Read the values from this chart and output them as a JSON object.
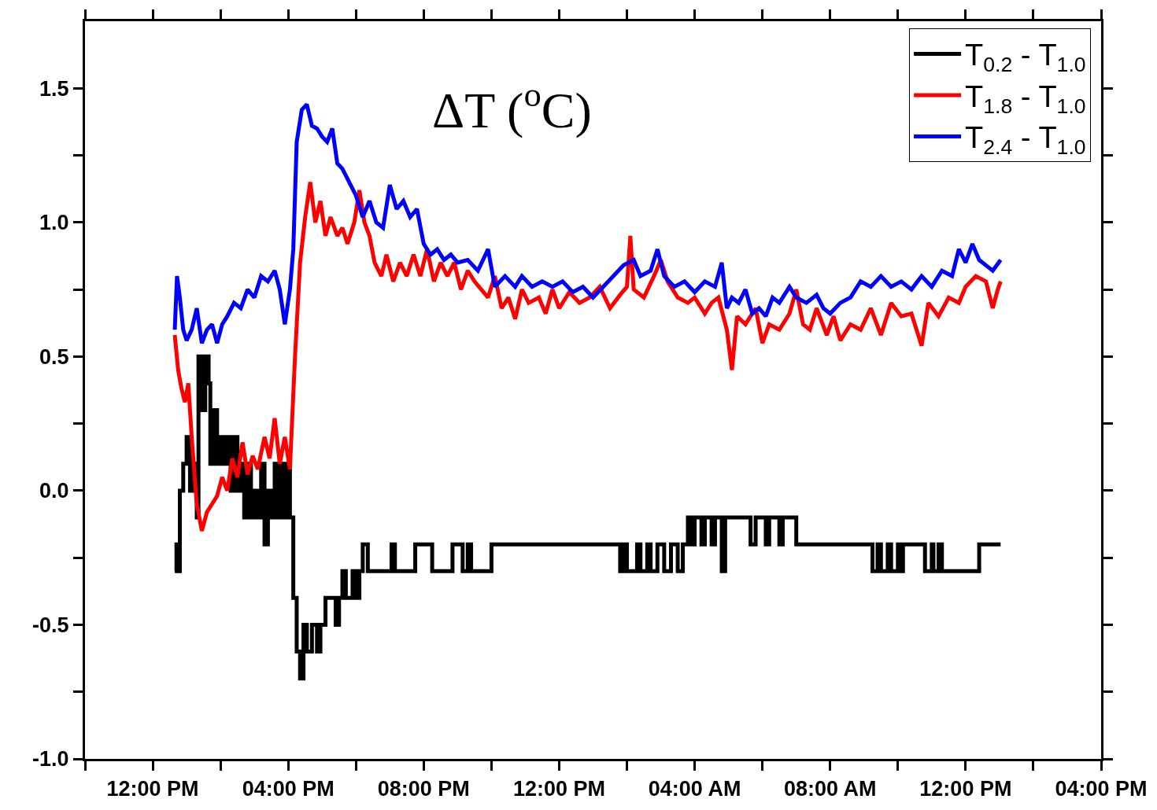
{
  "chart_data": {
    "type": "line",
    "annotations": [
      "ΔT ($^{o}$C)"
    ],
    "legend": "top right",
    "line_style": "solid",
    "xlim": [
      "2000-01-01T10:00",
      "2000-01-02T16:00"
    ],
    "xticks": [
      {
        "value": "2000-01-01T10:00",
        "label": null
      },
      {
        "value": "2000-01-01T12:00",
        "label": "12:00 PM"
      },
      {
        "value": "2000-01-01T14:00",
        "label": null
      },
      {
        "value": "2000-01-01T16:00",
        "label": "04:00 PM"
      },
      {
        "value": "2000-01-01T18:00",
        "label": null
      },
      {
        "value": "2000-01-01T20:00",
        "label": "08:00 PM"
      },
      {
        "value": "2000-01-01T22:00",
        "label": null
      },
      {
        "value": "2000-01-02T00:00",
        "label": "12:00 PM"
      },
      {
        "value": "2000-01-02T02:00",
        "label": null
      },
      {
        "value": "2000-01-02T04:00",
        "label": "04:00 AM"
      },
      {
        "value": "2000-01-02T06:00",
        "label": null
      },
      {
        "value": "2000-01-02T08:00",
        "label": "08:00 AM"
      },
      {
        "value": "2000-01-02T10:00",
        "label": null
      },
      {
        "value": "2000-01-02T12:00",
        "label": "12:00 PM"
      },
      {
        "value": "2000-01-02T14:00",
        "label": null
      },
      {
        "value": "2000-01-02T16:00",
        "label": "04:00 PM"
      }
    ],
    "ylim": [
      -1.0,
      1.75
    ],
    "yticks": [
      {
        "value": -1.0,
        "label": "-1.0"
      },
      {
        "value": -0.75,
        "label": null
      },
      {
        "value": -0.5,
        "label": "-0.5"
      },
      {
        "value": -0.25,
        "label": null
      },
      {
        "value": 0,
        "label": "0.0"
      },
      {
        "value": 0.25,
        "label": null
      },
      {
        "value": 0.5,
        "label": "0.5"
      },
      {
        "value": 0.75,
        "label": null
      },
      {
        "value": 1.0,
        "label": "1.0"
      },
      {
        "value": 1.25,
        "label": null
      },
      {
        "value": 1.5,
        "label": "1.5"
      }
    ],
    "series": [
      {
        "name": "T$_{0.2}$ - T$_{1.0}$",
        "color": "#000000",
        "type": "step",
        "x": [
          "2000-01-01T12:39",
          "2000-01-01T12:42",
          "2000-01-01T12:45",
          "2000-01-01T12:48",
          "2000-01-01T12:54",
          "2000-01-01T13:00",
          "2000-01-01T13:06",
          "2000-01-01T13:12",
          "2000-01-01T13:18",
          "2000-01-01T13:21",
          "2000-01-01T13:27",
          "2000-01-01T13:33",
          "2000-01-01T13:39",
          "2000-01-01T13:42",
          "2000-01-01T13:48",
          "2000-01-01T13:54",
          "2000-01-01T14:00",
          "2000-01-01T14:06",
          "2000-01-01T14:12",
          "2000-01-01T14:18",
          "2000-01-01T14:24",
          "2000-01-01T14:30",
          "2000-01-01T14:36",
          "2000-01-01T14:42",
          "2000-01-01T14:48",
          "2000-01-01T14:54",
          "2000-01-01T15:00",
          "2000-01-01T15:06",
          "2000-01-01T15:12",
          "2000-01-01T15:18",
          "2000-01-01T15:24",
          "2000-01-01T15:30",
          "2000-01-01T15:36",
          "2000-01-01T15:42",
          "2000-01-01T15:48",
          "2000-01-01T15:54",
          "2000-01-01T16:00",
          "2000-01-01T16:03",
          "2000-01-01T16:09",
          "2000-01-01T16:15",
          "2000-01-01T16:21",
          "2000-01-01T16:27",
          "2000-01-01T16:33",
          "2000-01-01T16:42",
          "2000-01-01T16:51",
          "2000-01-01T16:57",
          "2000-01-01T17:06",
          "2000-01-01T17:18",
          "2000-01-01T17:24",
          "2000-01-01T17:30",
          "2000-01-01T17:36",
          "2000-01-01T17:42",
          "2000-01-01T17:54",
          "2000-01-01T18:00",
          "2000-01-01T18:06",
          "2000-01-01T18:12",
          "2000-01-01T18:21",
          "2000-01-01T19:00",
          "2000-01-01T19:03",
          "2000-01-01T19:09",
          "2000-01-01T19:42",
          "2000-01-01T19:45",
          "2000-01-01T20:12",
          "2000-01-01T20:15",
          "2000-01-01T20:48",
          "2000-01-01T20:51",
          "2000-01-01T21:06",
          "2000-01-01T21:09",
          "2000-01-01T21:18",
          "2000-01-01T21:24",
          "2000-01-01T21:57",
          "2000-01-01T22:00",
          "2000-01-02T01:45",
          "2000-01-02T01:48",
          "2000-01-02T01:54",
          "2000-01-02T02:00",
          "2000-01-02T02:18",
          "2000-01-02T02:24",
          "2000-01-02T02:36",
          "2000-01-02T02:42",
          "2000-01-02T02:54",
          "2000-01-02T03:06",
          "2000-01-02T03:18",
          "2000-01-02T03:30",
          "2000-01-02T03:39",
          "2000-01-02T03:48",
          "2000-01-02T03:54",
          "2000-01-02T04:00",
          "2000-01-02T04:12",
          "2000-01-02T04:18",
          "2000-01-02T04:30",
          "2000-01-02T04:36",
          "2000-01-02T04:48",
          "2000-01-02T04:54",
          "2000-01-02T05:36",
          "2000-01-02T05:39",
          "2000-01-02T05:48",
          "2000-01-02T06:06",
          "2000-01-02T06:12",
          "2000-01-02T06:30",
          "2000-01-02T06:36",
          "2000-01-02T06:57",
          "2000-01-02T07:00",
          "2000-01-02T09:12",
          "2000-01-02T09:15",
          "2000-01-02T09:24",
          "2000-01-02T09:30",
          "2000-01-02T09:42",
          "2000-01-02T09:48",
          "2000-01-02T10:00",
          "2000-01-02T10:03",
          "2000-01-02T10:09",
          "2000-01-02T10:45",
          "2000-01-02T10:48",
          "2000-01-02T11:00",
          "2000-01-02T11:03",
          "2000-01-02T11:12",
          "2000-01-02T11:18",
          "2000-01-02T12:18",
          "2000-01-02T12:24",
          "2000-01-02T13:02"
        ],
        "values": [
          -0.3,
          -0.2,
          -0.3,
          0.0,
          0.1,
          0.2,
          0.0,
          0.1,
          -0.1,
          0.5,
          0.3,
          0.5,
          0.4,
          0.1,
          0.3,
          0.1,
          0.2,
          0.1,
          0.2,
          0.0,
          0.2,
          0.0,
          0.1,
          -0.1,
          0.1,
          -0.1,
          0.0,
          -0.1,
          0.1,
          -0.2,
          0.0,
          -0.1,
          0.1,
          -0.1,
          0.1,
          -0.1,
          0.1,
          -0.1,
          -0.4,
          -0.6,
          -0.7,
          -0.5,
          -0.6,
          -0.5,
          -0.6,
          -0.5,
          -0.4,
          -0.4,
          -0.5,
          -0.4,
          -0.3,
          -0.4,
          -0.3,
          -0.4,
          -0.3,
          -0.2,
          -0.3,
          -0.3,
          -0.2,
          -0.3,
          -0.3,
          -0.2,
          -0.2,
          -0.3,
          -0.3,
          -0.2,
          -0.2,
          -0.3,
          -0.2,
          -0.3,
          -0.3,
          -0.2,
          -0.2,
          -0.3,
          -0.2,
          -0.3,
          -0.2,
          -0.3,
          -0.2,
          -0.3,
          -0.2,
          -0.3,
          -0.2,
          -0.3,
          -0.2,
          -0.1,
          -0.2,
          -0.1,
          -0.2,
          -0.1,
          -0.2,
          -0.1,
          -0.3,
          -0.1,
          -0.1,
          -0.2,
          -0.1,
          -0.2,
          -0.1,
          -0.2,
          -0.1,
          -0.1,
          -0.2,
          -0.2,
          -0.3,
          -0.2,
          -0.3,
          -0.2,
          -0.3,
          -0.2,
          -0.3,
          -0.2,
          -0.2,
          -0.3,
          -0.2,
          -0.3,
          -0.2,
          -0.3,
          -0.3,
          -0.2,
          -0.2
        ]
      },
      {
        "name": "T$_{1.8}$ - T$_{1.0}$",
        "color": "#ff0000",
        "x": [
          "2000-01-01T12:39",
          "2000-01-01T12:45",
          "2000-01-01T12:51",
          "2000-01-01T12:57",
          "2000-01-01T13:03",
          "2000-01-01T13:09",
          "2000-01-01T13:18",
          "2000-01-01T13:27",
          "2000-01-01T13:36",
          "2000-01-01T13:45",
          "2000-01-01T13:54",
          "2000-01-01T14:03",
          "2000-01-01T14:12",
          "2000-01-01T14:21",
          "2000-01-01T14:30",
          "2000-01-01T14:39",
          "2000-01-01T14:48",
          "2000-01-01T14:57",
          "2000-01-01T15:06",
          "2000-01-01T15:18",
          "2000-01-01T15:27",
          "2000-01-01T15:36",
          "2000-01-01T15:45",
          "2000-01-01T15:54",
          "2000-01-01T16:03",
          "2000-01-01T16:12",
          "2000-01-01T16:21",
          "2000-01-01T16:30",
          "2000-01-01T16:39",
          "2000-01-01T16:48",
          "2000-01-01T16:57",
          "2000-01-01T17:06",
          "2000-01-01T17:15",
          "2000-01-01T17:27",
          "2000-01-01T17:36",
          "2000-01-01T17:45",
          "2000-01-01T17:57",
          "2000-01-01T18:06",
          "2000-01-01T18:15",
          "2000-01-01T18:24",
          "2000-01-01T18:33",
          "2000-01-01T18:45",
          "2000-01-01T18:54",
          "2000-01-01T19:06",
          "2000-01-01T19:18",
          "2000-01-01T19:30",
          "2000-01-01T19:42",
          "2000-01-01T19:54",
          "2000-01-01T20:06",
          "2000-01-01T20:18",
          "2000-01-01T20:30",
          "2000-01-01T20:42",
          "2000-01-01T20:54",
          "2000-01-01T21:06",
          "2000-01-01T21:18",
          "2000-01-01T21:30",
          "2000-01-01T21:42",
          "2000-01-01T21:54",
          "2000-01-01T22:06",
          "2000-01-01T22:18",
          "2000-01-01T22:30",
          "2000-01-01T22:42",
          "2000-01-01T22:54",
          "2000-01-01T23:06",
          "2000-01-01T23:24",
          "2000-01-01T23:36",
          "2000-01-01T23:48",
          "2000-01-02T00:00",
          "2000-01-02T00:18",
          "2000-01-02T00:36",
          "2000-01-02T00:54",
          "2000-01-02T01:12",
          "2000-01-02T01:30",
          "2000-01-02T01:48",
          "2000-01-02T02:00",
          "2000-01-02T02:06",
          "2000-01-02T02:12",
          "2000-01-02T02:30",
          "2000-01-02T02:48",
          "2000-01-02T03:00",
          "2000-01-02T03:12",
          "2000-01-02T03:30",
          "2000-01-02T03:48",
          "2000-01-02T04:00",
          "2000-01-02T04:18",
          "2000-01-02T04:30",
          "2000-01-02T04:42",
          "2000-01-02T04:57",
          "2000-01-02T05:06",
          "2000-01-02T05:15",
          "2000-01-02T05:30",
          "2000-01-02T05:48",
          "2000-01-02T06:00",
          "2000-01-02T06:12",
          "2000-01-02T06:30",
          "2000-01-02T06:48",
          "2000-01-02T07:00",
          "2000-01-02T07:12",
          "2000-01-02T07:24",
          "2000-01-02T07:36",
          "2000-01-02T07:54",
          "2000-01-02T08:06",
          "2000-01-02T08:18",
          "2000-01-02T08:36",
          "2000-01-02T08:54",
          "2000-01-02T09:12",
          "2000-01-02T09:30",
          "2000-01-02T09:48",
          "2000-01-02T10:06",
          "2000-01-02T10:24",
          "2000-01-02T10:42",
          "2000-01-02T10:54",
          "2000-01-02T11:12",
          "2000-01-02T11:30",
          "2000-01-02T11:48",
          "2000-01-02T12:00",
          "2000-01-02T12:18",
          "2000-01-02T12:36",
          "2000-01-02T12:48",
          "2000-01-02T12:57",
          "2000-01-02T13:02"
        ],
        "values": [
          0.58,
          0.45,
          0.38,
          0.33,
          0.4,
          0.2,
          -0.05,
          -0.15,
          -0.08,
          -0.05,
          -0.02,
          0.05,
          0.0,
          0.12,
          0.05,
          0.18,
          0.06,
          0.13,
          0.08,
          0.2,
          0.12,
          0.27,
          0.1,
          0.2,
          0.08,
          0.5,
          0.85,
          1.02,
          1.15,
          1.0,
          1.08,
          0.95,
          1.02,
          0.95,
          0.98,
          0.92,
          1.0,
          1.12,
          1.0,
          0.95,
          0.85,
          0.8,
          0.88,
          0.78,
          0.85,
          0.8,
          0.88,
          0.8,
          0.9,
          0.78,
          0.85,
          0.8,
          0.85,
          0.75,
          0.82,
          0.78,
          0.75,
          0.72,
          0.8,
          0.68,
          0.72,
          0.64,
          0.75,
          0.7,
          0.72,
          0.66,
          0.75,
          0.68,
          0.74,
          0.7,
          0.72,
          0.76,
          0.68,
          0.73,
          0.76,
          0.95,
          0.75,
          0.72,
          0.8,
          0.86,
          0.78,
          0.72,
          0.7,
          0.72,
          0.66,
          0.7,
          0.72,
          0.6,
          0.45,
          0.65,
          0.62,
          0.68,
          0.55,
          0.62,
          0.6,
          0.66,
          0.75,
          0.62,
          0.6,
          0.68,
          0.58,
          0.65,
          0.56,
          0.62,
          0.6,
          0.68,
          0.58,
          0.7,
          0.65,
          0.66,
          0.54,
          0.7,
          0.65,
          0.72,
          0.7,
          0.76,
          0.8,
          0.78,
          0.68,
          0.75,
          0.78
        ]
      },
      {
        "name": "T$_{2.4}$ - T$_{1.0}$",
        "color": "#0000ff",
        "x": [
          "2000-01-01T12:39",
          "2000-01-01T12:43",
          "2000-01-01T12:48",
          "2000-01-01T12:54",
          "2000-01-01T13:00",
          "2000-01-01T13:09",
          "2000-01-01T13:18",
          "2000-01-01T13:27",
          "2000-01-01T13:36",
          "2000-01-01T13:45",
          "2000-01-01T13:54",
          "2000-01-01T14:03",
          "2000-01-01T14:12",
          "2000-01-01T14:24",
          "2000-01-01T14:36",
          "2000-01-01T14:48",
          "2000-01-01T15:00",
          "2000-01-01T15:12",
          "2000-01-01T15:24",
          "2000-01-01T15:36",
          "2000-01-01T15:45",
          "2000-01-01T15:54",
          "2000-01-01T16:03",
          "2000-01-01T16:09",
          "2000-01-01T16:15",
          "2000-01-01T16:24",
          "2000-01-01T16:33",
          "2000-01-01T16:42",
          "2000-01-01T16:51",
          "2000-01-01T17:00",
          "2000-01-01T17:09",
          "2000-01-01T17:18",
          "2000-01-01T17:27",
          "2000-01-01T17:36",
          "2000-01-01T17:48",
          "2000-01-01T18:00",
          "2000-01-01T18:12",
          "2000-01-01T18:24",
          "2000-01-01T18:36",
          "2000-01-01T18:48",
          "2000-01-01T19:00",
          "2000-01-01T19:12",
          "2000-01-01T19:24",
          "2000-01-01T19:36",
          "2000-01-01T19:48",
          "2000-01-01T20:00",
          "2000-01-01T20:12",
          "2000-01-01T20:24",
          "2000-01-01T20:36",
          "2000-01-01T20:48",
          "2000-01-01T21:00",
          "2000-01-01T21:18",
          "2000-01-01T21:36",
          "2000-01-01T21:54",
          "2000-01-01T22:06",
          "2000-01-01T22:24",
          "2000-01-01T22:42",
          "2000-01-01T22:54",
          "2000-01-01T23:12",
          "2000-01-01T23:30",
          "2000-01-01T23:48",
          "2000-01-02T00:06",
          "2000-01-02T00:24",
          "2000-01-02T00:42",
          "2000-01-02T01:00",
          "2000-01-02T01:18",
          "2000-01-02T01:36",
          "2000-01-02T01:54",
          "2000-01-02T02:12",
          "2000-01-02T02:24",
          "2000-01-02T02:42",
          "2000-01-02T02:54",
          "2000-01-02T03:06",
          "2000-01-02T03:24",
          "2000-01-02T03:42",
          "2000-01-02T04:00",
          "2000-01-02T04:18",
          "2000-01-02T04:36",
          "2000-01-02T04:48",
          "2000-01-02T04:57",
          "2000-01-02T05:06",
          "2000-01-02T05:18",
          "2000-01-02T05:30",
          "2000-01-02T05:42",
          "2000-01-02T05:54",
          "2000-01-02T06:06",
          "2000-01-02T06:18",
          "2000-01-02T06:30",
          "2000-01-02T06:48",
          "2000-01-02T07:00",
          "2000-01-02T07:18",
          "2000-01-02T07:36",
          "2000-01-02T07:48",
          "2000-01-02T08:00",
          "2000-01-02T08:18",
          "2000-01-02T08:36",
          "2000-01-02T08:54",
          "2000-01-02T09:12",
          "2000-01-02T09:30",
          "2000-01-02T09:48",
          "2000-01-02T10:06",
          "2000-01-02T10:24",
          "2000-01-02T10:42",
          "2000-01-02T11:00",
          "2000-01-02T11:18",
          "2000-01-02T11:36",
          "2000-01-02T11:48",
          "2000-01-02T12:00",
          "2000-01-02T12:12",
          "2000-01-02T12:24",
          "2000-01-02T12:36",
          "2000-01-02T12:48",
          "2000-01-02T13:02"
        ],
        "values": [
          0.6,
          0.8,
          0.72,
          0.6,
          0.56,
          0.6,
          0.68,
          0.55,
          0.6,
          0.62,
          0.55,
          0.62,
          0.65,
          0.7,
          0.68,
          0.75,
          0.72,
          0.8,
          0.78,
          0.82,
          0.75,
          0.62,
          0.75,
          0.9,
          1.3,
          1.42,
          1.44,
          1.36,
          1.35,
          1.32,
          1.3,
          1.35,
          1.22,
          1.2,
          1.15,
          1.1,
          1.02,
          1.08,
          1.0,
          0.98,
          1.14,
          1.05,
          1.08,
          1.02,
          1.05,
          0.92,
          0.88,
          0.9,
          0.86,
          0.88,
          0.85,
          0.86,
          0.82,
          0.9,
          0.76,
          0.8,
          0.76,
          0.8,
          0.76,
          0.78,
          0.76,
          0.78,
          0.74,
          0.76,
          0.72,
          0.76,
          0.8,
          0.84,
          0.86,
          0.8,
          0.82,
          0.9,
          0.8,
          0.76,
          0.78,
          0.74,
          0.78,
          0.76,
          0.85,
          0.68,
          0.72,
          0.7,
          0.75,
          0.66,
          0.68,
          0.65,
          0.72,
          0.7,
          0.76,
          0.72,
          0.7,
          0.73,
          0.68,
          0.66,
          0.7,
          0.72,
          0.78,
          0.76,
          0.8,
          0.76,
          0.78,
          0.75,
          0.8,
          0.76,
          0.82,
          0.8,
          0.9,
          0.85,
          0.92,
          0.86,
          0.84,
          0.82,
          0.86
        ]
      }
    ]
  }
}
